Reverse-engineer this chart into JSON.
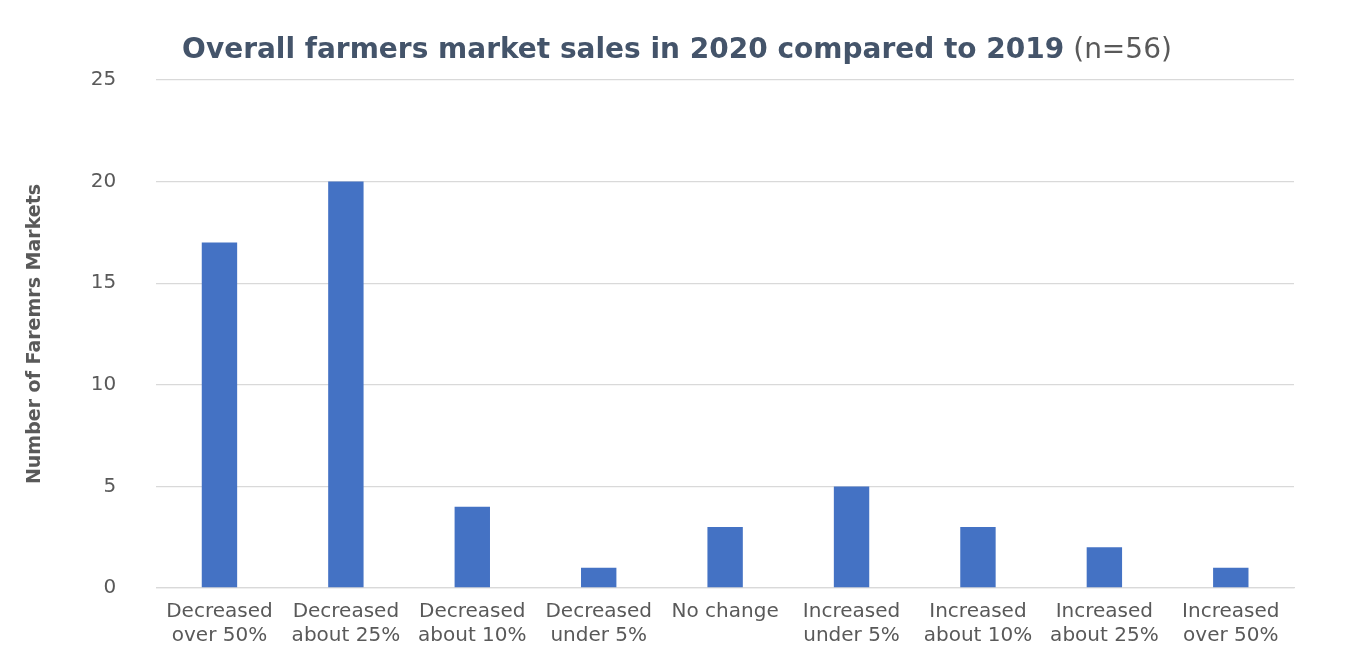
{
  "chart_data": {
    "type": "bar",
    "title": "Overall farmers market sales in 2020 compared to 2019",
    "subtitle": "(n=56)",
    "ylabel": "Number of Faremrs Markets",
    "categories": [
      "Decreased over 50%",
      "Decreased about 25%",
      "Decreased about 10%",
      "Decreased under 5%",
      "No change",
      "Increased under 5%",
      "Increased about 10%",
      "Increased about 25%",
      "Increased over 50%"
    ],
    "values": [
      17,
      20,
      4,
      1,
      3,
      5,
      3,
      2,
      1
    ],
    "color": "#4472c4",
    "ylim": [
      0,
      25
    ],
    "yticks": [
      0,
      5,
      10,
      15,
      20,
      25
    ],
    "grid": "y",
    "legend": false
  }
}
